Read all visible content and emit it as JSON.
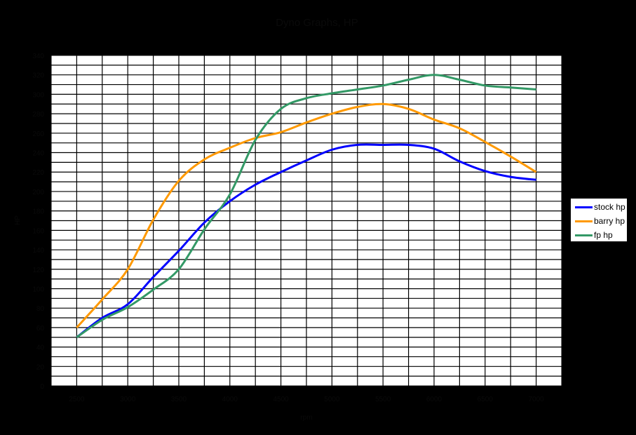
{
  "chart_data": {
    "type": "line",
    "title": "Dyno Graphs, HP",
    "xlabel": "rpm",
    "ylabel": "HP",
    "x": [
      2500,
      2750,
      3000,
      3250,
      3500,
      3750,
      4000,
      4250,
      4500,
      4750,
      5000,
      5250,
      5500,
      5750,
      6000,
      6250,
      6500,
      6750,
      7000
    ],
    "x_tick_labels": [
      "2500",
      "3000",
      "3500",
      "4000",
      "4500",
      "5000",
      "5500",
      "6000",
      "6500",
      "7000"
    ],
    "y_tick_labels": [
      "0",
      "20",
      "40",
      "60",
      "80",
      "100",
      "120",
      "140",
      "160",
      "180",
      "200",
      "220",
      "240",
      "260",
      "280",
      "300",
      "320",
      "340"
    ],
    "xlim": [
      2250,
      7250
    ],
    "ylim": [
      0,
      340
    ],
    "grid": true,
    "legend_position": "right",
    "series": [
      {
        "name": "stock hp",
        "color": "#0000FF",
        "values": [
          50,
          70,
          84,
          112,
          139,
          168,
          190,
          207,
          220,
          232,
          243,
          248,
          248,
          248,
          244,
          231,
          221,
          215,
          212
        ]
      },
      {
        "name": "barry hp",
        "color": "#FF9900",
        "values": [
          60,
          89,
          120,
          171,
          211,
          233,
          245,
          255,
          261,
          271,
          280,
          287,
          290,
          285,
          274,
          265,
          251,
          236,
          220
        ]
      },
      {
        "name": "fp hp",
        "color": "#339966",
        "values": [
          50,
          68,
          81,
          99,
          120,
          161,
          197,
          253,
          285,
          296,
          301,
          305,
          309,
          315,
          320,
          315,
          309,
          307,
          305
        ]
      }
    ]
  },
  "legend": {
    "items": [
      {
        "label": "stock hp",
        "color": "#0000FF"
      },
      {
        "label": "barry hp",
        "color": "#FF9900"
      },
      {
        "label": "fp hp",
        "color": "#339966"
      }
    ]
  }
}
